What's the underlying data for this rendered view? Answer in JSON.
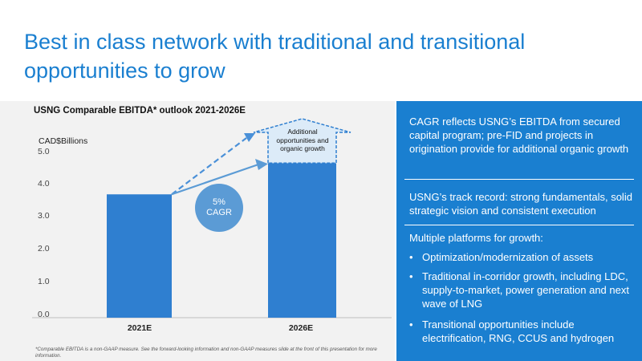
{
  "slide": {
    "title": "Best in class network with traditional and transitional opportunities to grow"
  },
  "chart_data": {
    "type": "bar",
    "title": "USNG Comparable EBITDA* outlook 2021-2026E",
    "unit_label": "CAD$Billions",
    "categories": [
      "2021E",
      "2026E"
    ],
    "values": [
      3.75,
      4.7
    ],
    "upside_top": 5.6,
    "ylim": [
      0,
      5
    ],
    "yticks": [
      "0.0",
      "1.0",
      "2.0",
      "3.0",
      "4.0",
      "5.0"
    ],
    "annotation": "Additional opportunities and organic growth",
    "cagr_label": [
      "5%",
      "CAGR"
    ],
    "bar_color": "#2f7fd0",
    "grid": false
  },
  "footnote": "*Comparable EBITDA is a non-GAAP measure. See the forward-looking information and non-GAAP measures slide at the front of this presentation for more information.",
  "right_panel": {
    "para1": "CAGR reflects USNG’s EBITDA from secured capital program; pre-FID and projects in origination provide for additional organic growth",
    "para2": "USNG’s track record: strong fundamentals, solid strategic vision and consistent execution",
    "para3": "Multiple platforms for growth:",
    "bullets": [
      "Optimization/modernization of assets",
      "Traditional in-corridor growth, including LDC, supply-to-market, power generation and next wave of LNG",
      "Transitional opportunities include electrification, RNG, CCUS and hydrogen"
    ],
    "bullet_char": "•",
    "bg_color": "#1a7fd0"
  }
}
